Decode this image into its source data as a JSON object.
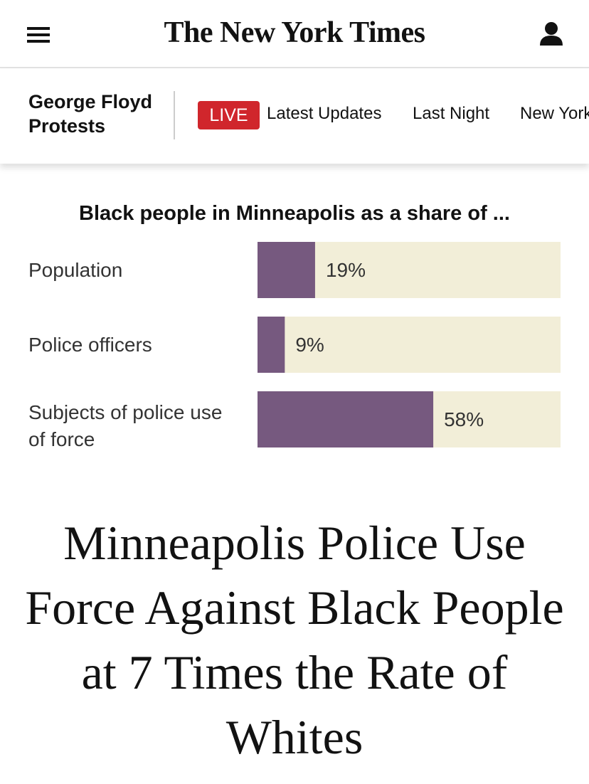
{
  "header": {
    "logo": "The New York Times"
  },
  "nav": {
    "section": "George Floyd Protests",
    "badge": "LIVE",
    "links": [
      "Latest Updates",
      "Last Night",
      "New York"
    ]
  },
  "chart_data": {
    "type": "bar",
    "orientation": "horizontal",
    "title": "Black people in Minneapolis as a share of ...",
    "categories": [
      "Population",
      "Police officers",
      "Subjects of police use of force"
    ],
    "values": [
      19,
      9,
      58
    ],
    "value_labels": [
      "19%",
      "9%",
      "58%"
    ],
    "color": "#76597f",
    "track_color": "#f2eed8",
    "xlim": [
      0,
      100
    ]
  },
  "headline": "Minneapolis Police Use Force Against Black People at 7 Times the Rate of Whites"
}
